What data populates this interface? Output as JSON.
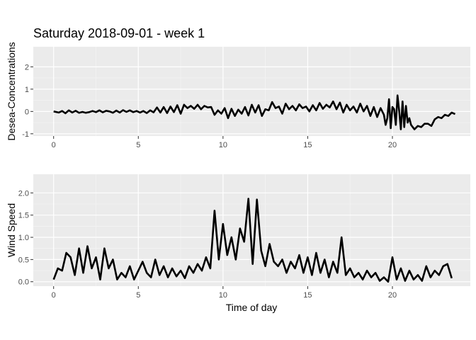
{
  "colors": {
    "panel_background": "#ebebeb",
    "grid_major": "#ffffff",
    "grid_minor": "#f5f5f5",
    "line": "#000000",
    "tick_label": "#4d4d4d",
    "page_background": "#ffffff"
  },
  "chart_data": [
    {
      "type": "line",
      "title": "Saturday 2018-09-01 - week 1",
      "xlabel": "",
      "ylabel": "Desea-Concentrations",
      "xlim": [
        -1.2,
        24.6
      ],
      "ylim": [
        -1.1,
        2.9
      ],
      "grid": true,
      "x_ticks": [
        0,
        5,
        10,
        15,
        20
      ],
      "x_tick_labels": [
        "0",
        "5",
        "10",
        "15",
        "20"
      ],
      "y_ticks": [
        -1,
        0,
        1,
        2
      ],
      "y_tick_labels": [
        "-1",
        "0",
        "1",
        "2"
      ],
      "series": [
        {
          "x": [
            0,
            0.3,
            0.5,
            0.7,
            0.9,
            1.1,
            1.3,
            1.5,
            1.7,
            1.9,
            2.1,
            2.3,
            2.5,
            2.7,
            2.9,
            3.1,
            3.3,
            3.5,
            3.7,
            3.9,
            4.1,
            4.3,
            4.5,
            4.7,
            4.9,
            5.1,
            5.3,
            5.5,
            5.7,
            5.9,
            6.1,
            6.3,
            6.5,
            6.7,
            6.9,
            7.1,
            7.3,
            7.5,
            7.7,
            7.9,
            8.1,
            8.3,
            8.5,
            8.7,
            8.9,
            9.1,
            9.3,
            9.5,
            9.7,
            9.9,
            10.1,
            10.3,
            10.5,
            10.7,
            10.9,
            11.1,
            11.3,
            11.5,
            11.7,
            11.9,
            12.1,
            12.3,
            12.5,
            12.7,
            12.9,
            13.1,
            13.3,
            13.5,
            13.7,
            13.9,
            14.1,
            14.3,
            14.5,
            14.7,
            14.9,
            15.1,
            15.3,
            15.5,
            15.7,
            15.9,
            16.1,
            16.3,
            16.5,
            16.7,
            16.9,
            17.1,
            17.3,
            17.5,
            17.7,
            17.9,
            18.1,
            18.3,
            18.5,
            18.7,
            18.9,
            19.1,
            19.3,
            19.5,
            19.6,
            19.7,
            19.8,
            19.9,
            20.0,
            20.1,
            20.2,
            20.3,
            20.4,
            20.5,
            20.6,
            20.7,
            20.8,
            20.9,
            21.0,
            21.1,
            21.3,
            21.5,
            21.7,
            21.9,
            22.1,
            22.3,
            22.5,
            22.7,
            22.9,
            23.1,
            23.3,
            23.5,
            23.7
          ],
          "y": [
            0.0,
            -0.05,
            0.02,
            -0.08,
            0.05,
            -0.05,
            0.03,
            -0.06,
            -0.02,
            -0.06,
            -0.03,
            0.02,
            -0.03,
            0.05,
            -0.04,
            0.03,
            0.0,
            -0.06,
            0.04,
            -0.05,
            0.06,
            -0.02,
            0.05,
            -0.03,
            0.02,
            -0.05,
            0.02,
            -0.07,
            0.05,
            -0.04,
            0.18,
            -0.05,
            0.2,
            -0.07,
            0.22,
            -0.03,
            0.28,
            -0.1,
            0.3,
            0.15,
            0.25,
            0.12,
            0.3,
            0.1,
            0.25,
            0.18,
            0.2,
            -0.15,
            0.05,
            -0.1,
            0.15,
            -0.3,
            0.12,
            -0.2,
            0.08,
            -0.1,
            0.2,
            -0.18,
            0.3,
            -0.05,
            0.28,
            -0.2,
            0.1,
            0.05,
            0.42,
            0.15,
            0.22,
            -0.1,
            0.35,
            0.1,
            0.25,
            0.05,
            0.32,
            0.15,
            0.22,
            0.0,
            0.28,
            0.05,
            0.38,
            0.12,
            0.3,
            0.18,
            0.45,
            0.1,
            0.4,
            -0.05,
            0.3,
            0.05,
            0.22,
            -0.05,
            0.35,
            0.0,
            0.25,
            -0.2,
            0.2,
            -0.25,
            0.15,
            -0.15,
            -0.6,
            -0.3,
            0.55,
            -0.75,
            0.2,
            0.1,
            -0.6,
            0.72,
            0.0,
            -0.8,
            0.45,
            -0.7,
            0.25,
            -0.5,
            -0.3,
            -0.6,
            -0.8,
            -0.65,
            -0.7,
            -0.55,
            -0.55,
            -0.65,
            -0.35,
            -0.25,
            -0.3,
            -0.15,
            -0.2,
            -0.05,
            -0.12
          ]
        }
      ]
    },
    {
      "type": "line",
      "title": "",
      "xlabel": "Time of day",
      "ylabel": "Wind Speed",
      "xlim": [
        -1.2,
        24.6
      ],
      "ylim": [
        -0.1,
        2.42
      ],
      "grid": true,
      "x_ticks": [
        0,
        5,
        10,
        15,
        20
      ],
      "x_tick_labels": [
        "0",
        "5",
        "10",
        "15",
        "20"
      ],
      "y_ticks": [
        0,
        0.5,
        1.0,
        1.5,
        2.0
      ],
      "y_tick_labels": [
        "0.0",
        "0.5",
        "1.0",
        "1.5",
        "2.0"
      ],
      "series": [
        {
          "x": [
            0,
            0.25,
            0.5,
            0.75,
            1.0,
            1.25,
            1.5,
            1.75,
            2.0,
            2.25,
            2.5,
            2.75,
            3.0,
            3.25,
            3.5,
            3.75,
            4.0,
            4.25,
            4.5,
            4.75,
            5.0,
            5.25,
            5.5,
            5.75,
            6.0,
            6.25,
            6.5,
            6.75,
            7.0,
            7.25,
            7.5,
            7.75,
            8.0,
            8.25,
            8.5,
            8.75,
            9.0,
            9.25,
            9.5,
            9.75,
            10.0,
            10.25,
            10.5,
            10.75,
            11.0,
            11.25,
            11.5,
            11.75,
            12.0,
            12.25,
            12.5,
            12.75,
            13.0,
            13.25,
            13.5,
            13.75,
            14.0,
            14.25,
            14.5,
            14.75,
            15.0,
            15.25,
            15.5,
            15.75,
            16.0,
            16.25,
            16.5,
            16.75,
            17.0,
            17.25,
            17.5,
            17.75,
            18.0,
            18.25,
            18.5,
            18.75,
            19.0,
            19.25,
            19.5,
            19.75,
            20.0,
            20.25,
            20.5,
            20.75,
            21.0,
            21.25,
            21.5,
            21.75,
            22.0,
            22.25,
            22.5,
            22.75,
            23.0,
            23.25,
            23.5
          ],
          "y": [
            0.05,
            0.3,
            0.25,
            0.65,
            0.55,
            0.15,
            0.75,
            0.2,
            0.8,
            0.3,
            0.55,
            0.05,
            0.75,
            0.3,
            0.5,
            0.05,
            0.2,
            0.1,
            0.35,
            0.05,
            0.25,
            0.45,
            0.2,
            0.1,
            0.5,
            0.15,
            0.35,
            0.1,
            0.3,
            0.12,
            0.25,
            0.08,
            0.35,
            0.2,
            0.4,
            0.25,
            0.55,
            0.3,
            1.6,
            0.5,
            1.3,
            0.6,
            1.0,
            0.5,
            1.2,
            0.9,
            1.87,
            0.4,
            1.85,
            0.7,
            0.35,
            0.85,
            0.45,
            0.35,
            0.5,
            0.2,
            0.45,
            0.3,
            0.6,
            0.2,
            0.55,
            0.15,
            0.65,
            0.2,
            0.5,
            0.1,
            0.45,
            0.2,
            1.0,
            0.15,
            0.3,
            0.1,
            0.2,
            0.05,
            0.25,
            0.1,
            0.2,
            0.02,
            0.1,
            0.0,
            0.55,
            0.05,
            0.3,
            0.02,
            0.25,
            0.05,
            0.15,
            0.02,
            0.35,
            0.1,
            0.25,
            0.15,
            0.35,
            0.4,
            0.08
          ]
        }
      ]
    }
  ]
}
